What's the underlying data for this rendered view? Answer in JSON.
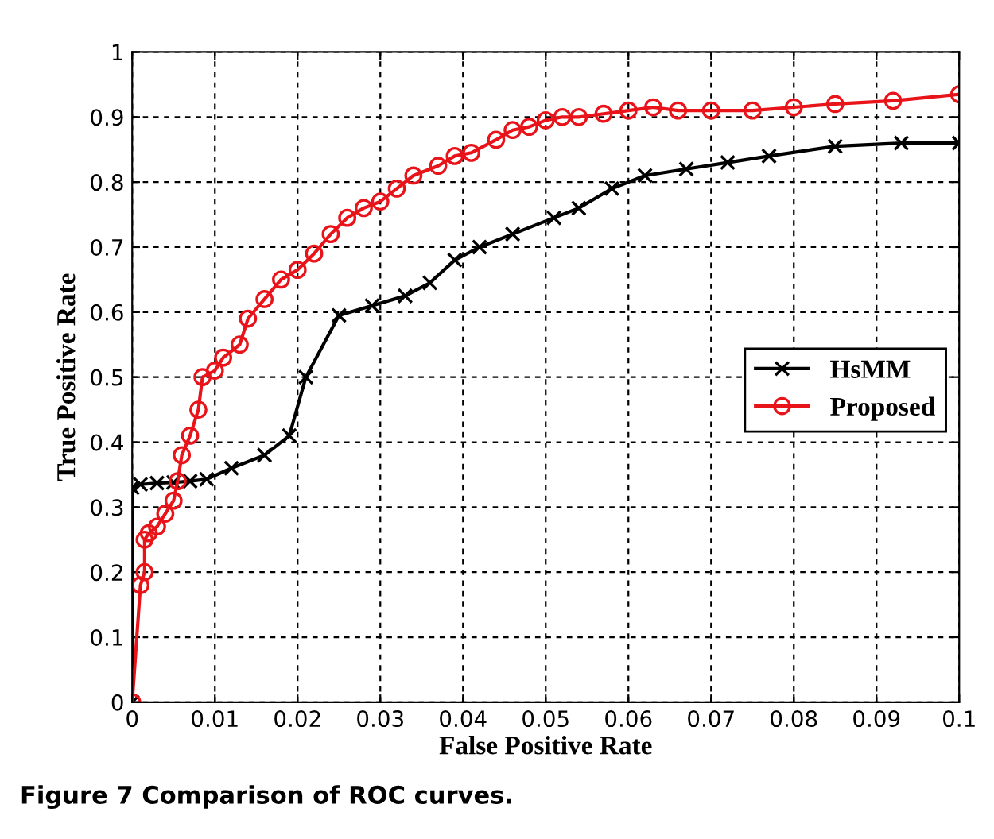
{
  "chart_data": {
    "type": "line",
    "xlabel": "False Positive Rate",
    "ylabel": "True Positive Rate",
    "annotations": [
      "Figure 7 Comparison of ROC curves."
    ],
    "xlim": [
      0,
      0.1
    ],
    "ylim": [
      0,
      1
    ],
    "xticks": [
      0,
      0.01,
      0.02,
      0.03,
      0.04,
      0.05,
      0.06,
      0.07,
      0.08,
      0.09,
      0.1
    ],
    "yticks": [
      0,
      0.1,
      0.2,
      0.3,
      0.4,
      0.5,
      0.6,
      0.7,
      0.8,
      0.9,
      1
    ],
    "grid": true,
    "legend": "right",
    "line_style": "solid",
    "series": [
      {
        "name": "HsMM",
        "color": "#000000",
        "marker": "cross",
        "x": [
          0,
          0,
          0.001,
          0.003,
          0.005,
          0.007,
          0.009,
          0.012,
          0.016,
          0.019,
          0.021,
          0.025,
          0.029,
          0.033,
          0.036,
          0.039,
          0.042,
          0.046,
          0.051,
          0.054,
          0.058,
          0.062,
          0.067,
          0.072,
          0.077,
          0.085,
          0.093,
          0.1
        ],
        "values": [
          0,
          0.33,
          0.335,
          0.337,
          0.338,
          0.34,
          0.343,
          0.36,
          0.38,
          0.41,
          0.5,
          0.595,
          0.61,
          0.625,
          0.645,
          0.68,
          0.7,
          0.72,
          0.745,
          0.76,
          0.79,
          0.81,
          0.82,
          0.83,
          0.84,
          0.855,
          0.86,
          0.86
        ]
      },
      {
        "name": "Proposed",
        "color": "#e8141a",
        "marker": "circle",
        "x": [
          0,
          0.001,
          0.0015,
          0.0015,
          0.002,
          0.003,
          0.004,
          0.005,
          0.0055,
          0.006,
          0.007,
          0.008,
          0.0085,
          0.01,
          0.011,
          0.013,
          0.014,
          0.016,
          0.018,
          0.02,
          0.022,
          0.024,
          0.026,
          0.028,
          0.03,
          0.032,
          0.034,
          0.037,
          0.039,
          0.041,
          0.044,
          0.046,
          0.048,
          0.05,
          0.052,
          0.054,
          0.057,
          0.06,
          0.063,
          0.066,
          0.07,
          0.075,
          0.08,
          0.085,
          0.092,
          0.1
        ],
        "values": [
          0,
          0.18,
          0.2,
          0.25,
          0.26,
          0.27,
          0.29,
          0.31,
          0.34,
          0.38,
          0.41,
          0.45,
          0.5,
          0.51,
          0.53,
          0.55,
          0.59,
          0.62,
          0.65,
          0.665,
          0.69,
          0.72,
          0.745,
          0.76,
          0.77,
          0.79,
          0.81,
          0.825,
          0.84,
          0.845,
          0.865,
          0.88,
          0.885,
          0.895,
          0.9,
          0.9,
          0.905,
          0.91,
          0.915,
          0.91,
          0.91,
          0.91,
          0.915,
          0.92,
          0.925,
          0.935
        ]
      }
    ]
  }
}
